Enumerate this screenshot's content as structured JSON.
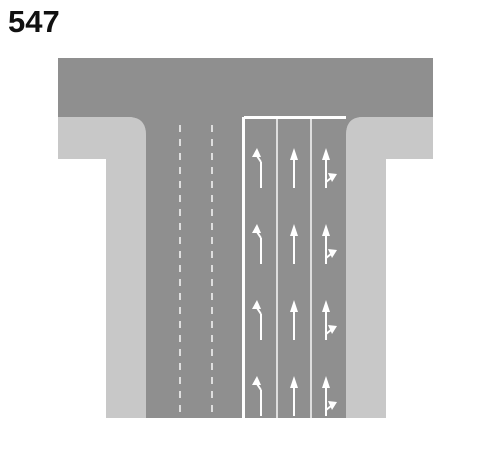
{
  "diagram": {
    "number": "547",
    "colors": {
      "road": "#8f8f8f",
      "sidewalk": "#c8c8c8",
      "marking": "#ffffff",
      "background": "#ffffff"
    },
    "lane_arrows": [
      "left-turn-arrow",
      "straight-arrow",
      "straight-right-arrow"
    ],
    "arrow_rows": 4
  }
}
